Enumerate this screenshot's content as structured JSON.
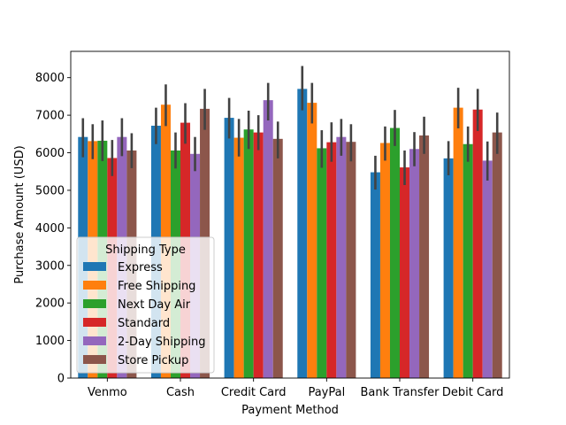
{
  "chart_data": {
    "type": "bar",
    "title": "",
    "xlabel": "Payment Method",
    "ylabel": "Purchase Amount (USD)",
    "ylim": [
      0,
      8700
    ],
    "yticks": [
      0,
      1000,
      2000,
      3000,
      4000,
      5000,
      6000,
      7000,
      8000
    ],
    "categories": [
      "Venmo",
      "Cash",
      "Credit Card",
      "PayPal",
      "Bank Transfer",
      "Debit Card"
    ],
    "legend": {
      "title": "Shipping Type",
      "placement": "lower-left"
    },
    "error_bars": true,
    "series": [
      {
        "name": "Express",
        "color": "#1f77b4",
        "values": [
          6420,
          6720,
          6930,
          7700,
          5480,
          5850
        ],
        "ci_low": [
          5880,
          6230,
          6380,
          7130,
          5020,
          5400
        ],
        "ci_high": [
          6920,
          7200,
          7460,
          8310,
          5920,
          6310
        ]
      },
      {
        "name": "Free Shipping",
        "color": "#ff7f0e",
        "values": [
          6310,
          7280,
          6400,
          7330,
          6260,
          7200
        ],
        "ci_low": [
          5830,
          6710,
          5900,
          6780,
          5790,
          6650
        ],
        "ci_high": [
          6760,
          7820,
          6900,
          7860,
          6700,
          7730
        ]
      },
      {
        "name": "Next Day Air",
        "color": "#2ca02c",
        "values": [
          6320,
          6060,
          6620,
          6120,
          6660,
          6230
        ],
        "ci_low": [
          5780,
          5580,
          6100,
          5600,
          6180,
          5760
        ],
        "ci_high": [
          6860,
          6540,
          7120,
          6600,
          7140,
          6700
        ]
      },
      {
        "name": "Standard",
        "color": "#d62728",
        "values": [
          5860,
          6800,
          6540,
          6280,
          5610,
          7150
        ],
        "ci_low": [
          5380,
          6240,
          6070,
          5760,
          5140,
          6580
        ],
        "ci_high": [
          6340,
          7320,
          7000,
          6810,
          6060,
          7700
        ]
      },
      {
        "name": "2-Day Shipping",
        "color": "#9467bd",
        "values": [
          6420,
          5970,
          7400,
          6420,
          6100,
          5790
        ],
        "ci_low": [
          5910,
          5510,
          6860,
          5920,
          5640,
          5260
        ],
        "ci_high": [
          6920,
          6420,
          7860,
          6900,
          6550,
          6300
        ]
      },
      {
        "name": "Store Pickup",
        "color": "#8c564b",
        "values": [
          6060,
          7170,
          6370,
          6290,
          6460,
          6540
        ],
        "ci_low": [
          5590,
          6610,
          5850,
          5770,
          5970,
          5970
        ],
        "ci_high": [
          6520,
          7700,
          6830,
          6760,
          6960,
          7070
        ]
      }
    ]
  }
}
